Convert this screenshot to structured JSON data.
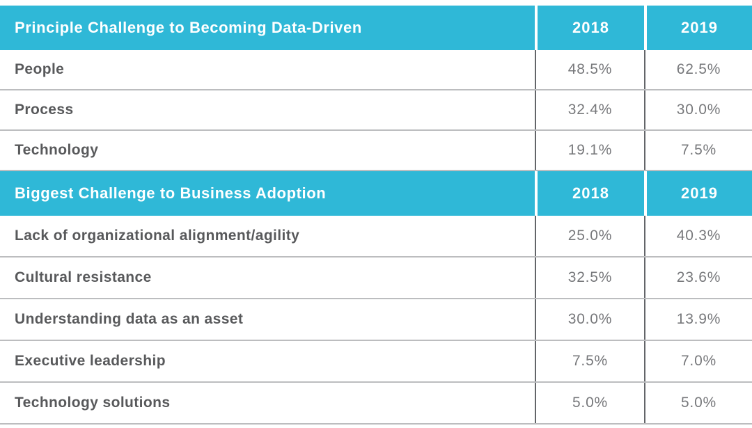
{
  "colors": {
    "accent_cyan": "#2fb8d7",
    "label_gray": "#58595b",
    "value_gray": "#77787b",
    "vertical_line_gray": "#636569",
    "horizontal_line_gray": "#bcbdbf"
  },
  "styles": {
    "header_bg": "background-color:#2fb8d7"
  },
  "table": {
    "section1": {
      "title": "Principle Challenge to Becoming Data-Driven",
      "year1": "2018",
      "year2": "2019",
      "rows": [
        {
          "label": "People",
          "y2018": "48.5%",
          "y2019": "62.5%"
        },
        {
          "label": "Process",
          "y2018": "32.4%",
          "y2019": "30.0%"
        },
        {
          "label": "Technology",
          "y2018": "19.1%",
          "y2019": "7.5%"
        }
      ]
    },
    "section2": {
      "title": "Biggest Challenge to Business Adoption",
      "year1": "2018",
      "year2": "2019",
      "rows": [
        {
          "label": "Lack of organizational alignment/agility",
          "y2018": "25.0%",
          "y2019": "40.3%"
        },
        {
          "label": "Cultural resistance",
          "y2018": "32.5%",
          "y2019": "23.6%"
        },
        {
          "label": "Understanding data as an asset",
          "y2018": "30.0%",
          "y2019": "13.9%"
        },
        {
          "label": "Executive leadership",
          "y2018": "7.5%",
          "y2019": "7.0%"
        },
        {
          "label": "Technology solutions",
          "y2018": "5.0%",
          "y2019": "5.0%"
        }
      ]
    }
  },
  "chart_data": {
    "type": "table",
    "unit": "%",
    "sections": [
      {
        "title": "Principle Challenge to Becoming Data-Driven",
        "columns": [
          "2018",
          "2019"
        ],
        "categories": [
          "People",
          "Process",
          "Technology"
        ],
        "series": [
          {
            "name": "2018",
            "values": [
              48.5,
              32.4,
              19.1
            ]
          },
          {
            "name": "2019",
            "values": [
              62.5,
              30.0,
              7.5
            ]
          }
        ]
      },
      {
        "title": "Biggest Challenge to Business Adoption",
        "columns": [
          "2018",
          "2019"
        ],
        "categories": [
          "Lack of organizational alignment/agility",
          "Cultural resistance",
          "Understanding data as an asset",
          "Executive leadership",
          "Technology solutions"
        ],
        "series": [
          {
            "name": "2018",
            "values": [
              25.0,
              32.5,
              30.0,
              7.5,
              5.0
            ]
          },
          {
            "name": "2019",
            "values": [
              40.3,
              23.6,
              13.9,
              7.0,
              5.0
            ]
          }
        ]
      }
    ]
  }
}
